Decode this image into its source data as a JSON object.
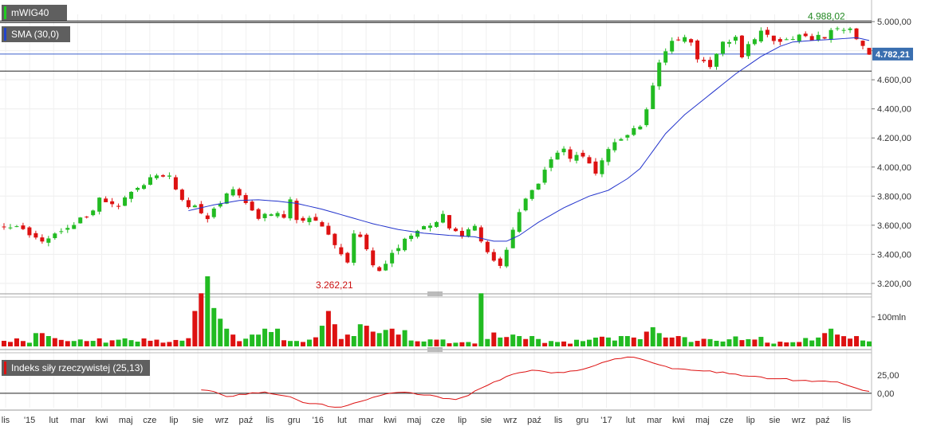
{
  "legends": {
    "price": "mWIG40",
    "sma": "SMA (30,0)",
    "indicator": "Indeks siły rzeczywistej (25,13)"
  },
  "colors": {
    "up": "#22bb22",
    "down": "#dd1111",
    "sma": "#2233cc",
    "indicator": "#dd1111",
    "price_swatch": "#22cc22",
    "sma_swatch": "#2244cc",
    "indicator_swatch": "#dd1111",
    "last_price_label": "#3a6fb0",
    "max_label": "#228822",
    "min_label": "#cc1111"
  },
  "chart_data": [
    {
      "type": "candlestick",
      "name": "mWIG40",
      "ylim": [
        3150,
        5050
      ],
      "yticks": [
        "5.000,00",
        "4.800,00",
        "4.600,00",
        "4.400,00",
        "4.200,00",
        "4.000,00",
        "3.800,00",
        "3.600,00",
        "3.400,00",
        "3.200,00"
      ],
      "ytick_values": [
        5000,
        4800,
        4600,
        4400,
        4200,
        4000,
        3800,
        3600,
        3400,
        3200
      ],
      "last_value_label": "4.782,21",
      "last_value": 4782.21,
      "max_label": "4.988,02",
      "max_value": 4988.02,
      "min_label": "3.262,21",
      "min_value": 3262.21,
      "close_path": [
        [
          0,
          3600
        ],
        [
          3,
          3560
        ],
        [
          6,
          3480
        ],
        [
          7,
          3520
        ],
        [
          9,
          3560
        ],
        [
          13,
          3660
        ],
        [
          15,
          3780
        ],
        [
          18,
          3740
        ],
        [
          22,
          3880
        ],
        [
          24,
          3950
        ],
        [
          26,
          3930
        ],
        [
          27,
          3850
        ],
        [
          28,
          3760
        ],
        [
          31,
          3700
        ],
        [
          32,
          3640
        ],
        [
          34,
          3750
        ],
        [
          36,
          3850
        ],
        [
          37,
          3810
        ],
        [
          39,
          3700
        ],
        [
          40,
          3660
        ],
        [
          42,
          3690
        ],
        [
          44,
          3640
        ],
        [
          45,
          3770
        ],
        [
          46,
          3640
        ],
        [
          48,
          3640
        ],
        [
          50,
          3590
        ],
        [
          51,
          3550
        ],
        [
          52,
          3480
        ],
        [
          53,
          3420
        ],
        [
          54,
          3360
        ],
        [
          55,
          3560
        ],
        [
          56,
          3500
        ],
        [
          57,
          3440
        ],
        [
          58,
          3330
        ],
        [
          59,
          3290
        ],
        [
          60,
          3350
        ],
        [
          61,
          3390
        ],
        [
          62,
          3430
        ],
        [
          63,
          3500
        ],
        [
          65,
          3560
        ],
        [
          67,
          3590
        ],
        [
          69,
          3660
        ],
        [
          70,
          3560
        ],
        [
          72,
          3530
        ],
        [
          74,
          3580
        ],
        [
          75,
          3470
        ],
        [
          76,
          3420
        ],
        [
          77,
          3360
        ],
        [
          78,
          3320
        ],
        [
          79,
          3430
        ],
        [
          80,
          3560
        ],
        [
          81,
          3690
        ],
        [
          82,
          3780
        ],
        [
          84,
          3900
        ],
        [
          86,
          4050
        ],
        [
          88,
          4110
        ],
        [
          89,
          4040
        ],
        [
          91,
          4090
        ],
        [
          92,
          4040
        ],
        [
          93,
          3950
        ],
        [
          95,
          4120
        ],
        [
          97,
          4200
        ],
        [
          100,
          4280
        ],
        [
          101,
          4410
        ],
        [
          102,
          4560
        ],
        [
          103,
          4700
        ],
        [
          105,
          4860
        ],
        [
          107,
          4880
        ],
        [
          108,
          4840
        ],
        [
          109,
          4760
        ],
        [
          110,
          4730
        ],
        [
          111,
          4700
        ],
        [
          113,
          4850
        ],
        [
          115,
          4880
        ],
        [
          116,
          4760
        ],
        [
          117,
          4860
        ],
        [
          119,
          4920
        ],
        [
          121,
          4880
        ],
        [
          123,
          4870
        ],
        [
          125,
          4920
        ],
        [
          127,
          4880
        ],
        [
          129,
          4900
        ],
        [
          131,
          4950
        ],
        [
          133,
          4960
        ],
        [
          134,
          4860
        ],
        [
          135,
          4830
        ],
        [
          136,
          4782
        ]
      ],
      "sma_path": [
        [
          29,
          3700
        ],
        [
          33,
          3740
        ],
        [
          37,
          3770
        ],
        [
          40,
          3775
        ],
        [
          43,
          3765
        ],
        [
          46,
          3750
        ],
        [
          50,
          3710
        ],
        [
          54,
          3660
        ],
        [
          58,
          3610
        ],
        [
          62,
          3570
        ],
        [
          66,
          3545
        ],
        [
          70,
          3530
        ],
        [
          74,
          3520
        ],
        [
          77,
          3490
        ],
        [
          79,
          3490
        ],
        [
          81,
          3530
        ],
        [
          84,
          3620
        ],
        [
          88,
          3720
        ],
        [
          92,
          3800
        ],
        [
          95,
          3840
        ],
        [
          98,
          3920
        ],
        [
          100,
          3990
        ],
        [
          102,
          4110
        ],
        [
          104,
          4230
        ],
        [
          107,
          4360
        ],
        [
          111,
          4500
        ],
        [
          115,
          4640
        ],
        [
          119,
          4760
        ],
        [
          122,
          4830
        ],
        [
          124,
          4860
        ],
        [
          127,
          4870
        ],
        [
          131,
          4880
        ],
        [
          134,
          4890
        ],
        [
          136,
          4870
        ]
      ]
    },
    {
      "type": "bar",
      "name": "Volume",
      "ytick_label": "100mln",
      "ytick_value": 100,
      "ylim": [
        0,
        170
      ],
      "levels": [
        {
          "from": 0,
          "to": 30,
          "value": 20
        },
        {
          "from": 30,
          "to": 31,
          "value": 120
        },
        {
          "from": 31,
          "to": 34,
          "value": 180
        },
        {
          "from": 34,
          "to": 36,
          "value": 75
        },
        {
          "from": 36,
          "to": 40,
          "value": 25
        },
        {
          "from": 40,
          "to": 44,
          "value": 40
        },
        {
          "from": 44,
          "to": 50,
          "value": 25
        },
        {
          "from": 50,
          "to": 52,
          "value": 70
        },
        {
          "from": 52,
          "to": 56,
          "value": 50
        },
        {
          "from": 56,
          "to": 59,
          "value": 75
        },
        {
          "from": 59,
          "to": 62,
          "value": 40
        },
        {
          "from": 62,
          "to": 66,
          "value": 25
        },
        {
          "from": 66,
          "to": 70,
          "value": 18
        },
        {
          "from": 70,
          "to": 75,
          "value": 12
        },
        {
          "from": 75,
          "to": 76,
          "value": 180
        },
        {
          "from": 76,
          "to": 80,
          "value": 35
        },
        {
          "from": 80,
          "to": 90,
          "value": 15
        },
        {
          "from": 90,
          "to": 95,
          "value": 25
        },
        {
          "from": 95,
          "to": 100,
          "value": 25
        },
        {
          "from": 100,
          "to": 102,
          "value": 20
        },
        {
          "from": 102,
          "to": 104,
          "value": 55
        },
        {
          "from": 104,
          "to": 120,
          "value": 25
        },
        {
          "from": 120,
          "to": 126,
          "value": 12
        },
        {
          "from": 126,
          "to": 136,
          "value": 25
        }
      ],
      "spikes": [
        [
          5,
          45
        ],
        [
          6,
          45
        ],
        [
          7,
          35
        ],
        [
          30,
          120
        ],
        [
          31,
          180
        ],
        [
          33,
          130
        ],
        [
          35,
          60
        ],
        [
          36,
          40
        ],
        [
          39,
          40
        ],
        [
          41,
          60
        ],
        [
          43,
          60
        ],
        [
          50,
          70
        ],
        [
          51,
          120
        ],
        [
          52,
          75
        ],
        [
          53,
          25
        ],
        [
          54,
          40
        ],
        [
          55,
          35
        ],
        [
          56,
          75
        ],
        [
          57,
          70
        ],
        [
          58,
          50
        ],
        [
          59,
          45
        ],
        [
          61,
          60
        ],
        [
          62,
          40
        ],
        [
          63,
          55
        ],
        [
          64,
          20
        ],
        [
          75,
          180
        ],
        [
          76,
          25
        ],
        [
          78,
          30
        ],
        [
          80,
          40
        ],
        [
          81,
          35
        ],
        [
          82,
          25
        ],
        [
          83,
          35
        ],
        [
          84,
          25
        ],
        [
          97,
          35
        ],
        [
          98,
          35
        ],
        [
          99,
          30
        ],
        [
          101,
          50
        ],
        [
          102,
          65
        ],
        [
          103,
          45
        ],
        [
          104,
          30
        ],
        [
          105,
          30
        ],
        [
          106,
          35
        ],
        [
          128,
          30
        ],
        [
          129,
          45
        ],
        [
          130,
          60
        ],
        [
          131,
          40
        ]
      ]
    },
    {
      "type": "line",
      "name": "Indeks siły rzeczywistej (25,13)",
      "yticks": [
        "25,00",
        "0,00"
      ],
      "ytick_values": [
        25,
        0
      ],
      "ylim": [
        -20,
        55
      ],
      "path": [
        [
          31,
          4
        ],
        [
          33,
          2
        ],
        [
          35,
          -5
        ],
        [
          37,
          -2
        ],
        [
          39,
          0
        ],
        [
          41,
          1
        ],
        [
          43,
          -2
        ],
        [
          45,
          -5
        ],
        [
          47,
          -13
        ],
        [
          49,
          -14
        ],
        [
          51,
          -18
        ],
        [
          53,
          -19
        ],
        [
          55,
          -14
        ],
        [
          57,
          -9
        ],
        [
          59,
          -4
        ],
        [
          61,
          0
        ],
        [
          63,
          1
        ],
        [
          65,
          -1
        ],
        [
          67,
          -3
        ],
        [
          69,
          -7
        ],
        [
          71,
          -8
        ],
        [
          73,
          -3
        ],
        [
          75,
          8
        ],
        [
          78,
          18
        ],
        [
          80,
          27
        ],
        [
          82,
          30
        ],
        [
          84,
          32
        ],
        [
          86,
          28
        ],
        [
          88,
          29
        ],
        [
          90,
          32
        ],
        [
          92,
          35
        ],
        [
          94,
          42
        ],
        [
          96,
          47
        ],
        [
          98,
          50
        ],
        [
          100,
          48
        ],
        [
          102,
          42
        ],
        [
          105,
          35
        ],
        [
          108,
          32
        ],
        [
          111,
          30
        ],
        [
          114,
          28
        ],
        [
          116,
          25
        ],
        [
          118,
          24
        ],
        [
          120,
          21
        ],
        [
          122,
          21
        ],
        [
          124,
          18
        ],
        [
          126,
          17
        ],
        [
          128,
          17
        ],
        [
          130,
          15
        ],
        [
          131,
          16
        ],
        [
          133,
          10
        ],
        [
          135,
          5
        ],
        [
          136,
          3
        ]
      ]
    }
  ],
  "x_axis": {
    "labels": [
      "lis",
      "'15",
      "lut",
      "mar",
      "kwi",
      "maj",
      "cze",
      "lip",
      "sie",
      "wrz",
      "paź",
      "lis",
      "gru",
      "'16",
      "lut",
      "mar",
      "kwi",
      "maj",
      "cze",
      "lip",
      "sie",
      "wrz",
      "paź",
      "lis",
      "gru",
      "'17",
      "lut",
      "mar",
      "kwi",
      "maj",
      "cze",
      "lip",
      "sie",
      "wrz",
      "paź",
      "lis"
    ],
    "start_month": "2014-11",
    "end_month": "2017-11"
  }
}
